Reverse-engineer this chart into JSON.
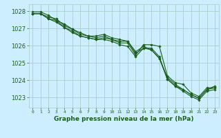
{
  "bg_color": "#cceeff",
  "grid_color": "#aacccc",
  "line_color": "#1a5e1a",
  "marker_color": "#1a5e1a",
  "xlabel": "Graphe pression niveau de la mer (hPa)",
  "xlim": [
    -0.5,
    23.5
  ],
  "ylim": [
    1022.4,
    1028.4
  ],
  "yticks": [
    1023,
    1024,
    1025,
    1026,
    1027,
    1028
  ],
  "xticks": [
    0,
    1,
    2,
    3,
    4,
    5,
    6,
    7,
    8,
    9,
    10,
    11,
    12,
    13,
    14,
    15,
    16,
    17,
    18,
    19,
    20,
    21,
    22,
    23
  ],
  "series": [
    [
      1027.85,
      1027.85,
      1027.55,
      1027.45,
      1027.05,
      1026.85,
      1026.55,
      1026.45,
      1026.35,
      1026.45,
      1026.35,
      1026.15,
      1026.15,
      1025.45,
      1026.05,
      1026.05,
      1025.95,
      1024.25,
      1023.85,
      1023.75,
      1023.25,
      1023.05,
      1023.55,
      1023.55
    ],
    [
      1027.85,
      1027.85,
      1027.65,
      1027.55,
      1027.15,
      1026.95,
      1026.65,
      1026.55,
      1026.45,
      1026.55,
      1026.35,
      1026.25,
      1026.25,
      1025.55,
      1025.85,
      1025.85,
      1025.35,
      1024.05,
      1023.65,
      1023.45,
      1023.15,
      1022.95,
      1023.45,
      1023.55
    ],
    [
      1027.95,
      1027.95,
      1027.75,
      1027.45,
      1027.25,
      1026.95,
      1026.75,
      1026.55,
      1026.55,
      1026.65,
      1026.45,
      1026.35,
      1026.25,
      1025.65,
      1025.95,
      1025.75,
      1025.25,
      1024.15,
      1023.75,
      1023.45,
      1023.15,
      1022.95,
      1023.45,
      1023.65
    ],
    [
      1027.85,
      1027.85,
      1027.55,
      1027.35,
      1027.05,
      1026.75,
      1026.55,
      1026.45,
      1026.35,
      1026.35,
      1026.25,
      1026.05,
      1025.95,
      1025.35,
      1025.85,
      1025.75,
      1025.25,
      1024.05,
      1023.65,
      1023.35,
      1023.05,
      1022.85,
      1023.35,
      1023.45
    ]
  ]
}
